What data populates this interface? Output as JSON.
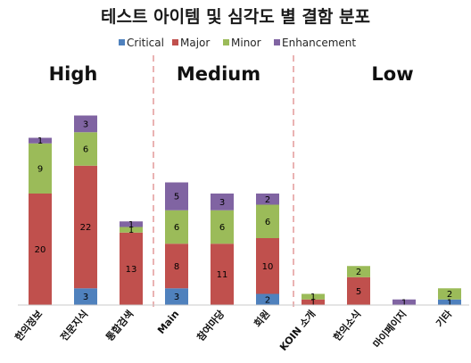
{
  "chart_data": {
    "type": "bar",
    "stacked": true,
    "title": "테스트 아이템 및 심각도 별 결함 분포",
    "categories": [
      "한의정보",
      "전문지식",
      "통합검색",
      "Main",
      "참여마당",
      "회원",
      "KOIN 소개",
      "한의소식",
      "마이페이지",
      "기타"
    ],
    "groups": [
      {
        "label": "High",
        "categories": [
          "한의정보",
          "전문지식",
          "통합검색"
        ]
      },
      {
        "label": "Medium",
        "categories": [
          "Main",
          "참여마당",
          "회원"
        ]
      },
      {
        "label": "Low",
        "categories": [
          "KOIN 소개",
          "한의소식",
          "마이페이지",
          "기타"
        ]
      }
    ],
    "series": [
      {
        "name": "Critical",
        "color": "#4f81bd",
        "values": [
          0,
          3,
          0,
          3,
          0,
          2,
          0,
          0,
          0,
          1
        ]
      },
      {
        "name": "Major",
        "color": "#c0504d",
        "values": [
          20,
          22,
          13,
          8,
          11,
          10,
          1,
          5,
          0,
          0
        ]
      },
      {
        "name": "Minor",
        "color": "#9bbb59",
        "values": [
          9,
          6,
          1,
          6,
          6,
          6,
          1,
          2,
          0,
          2
        ]
      },
      {
        "name": "Enhancement",
        "color": "#8064a2",
        "values": [
          1,
          3,
          1,
          5,
          3,
          2,
          0,
          0,
          1,
          0
        ]
      }
    ],
    "ylim": [
      0,
      40
    ],
    "legend": "top",
    "grid": false,
    "separator_color": "#e39a9a"
  }
}
